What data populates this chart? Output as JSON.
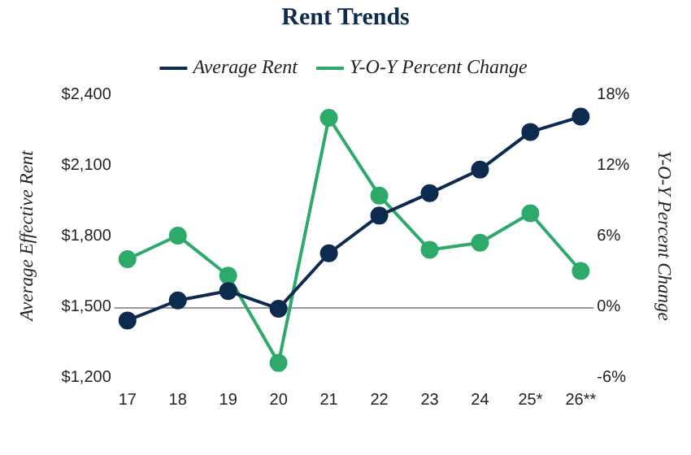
{
  "chart_data": {
    "type": "line",
    "title": "Rent Trends",
    "categories": [
      "17",
      "18",
      "19",
      "20",
      "21",
      "22",
      "23",
      "24",
      "25*",
      "26**"
    ],
    "series": [
      {
        "name": "Average Rent",
        "color": "#0d2a4f",
        "values": [
          1440,
          1525,
          1565,
          1490,
          1725,
          1885,
          1980,
          2080,
          2240,
          2305
        ]
      },
      {
        "name": "Y-O-Y Percent Change",
        "color": "#2daa6a",
        "axis": "y2",
        "values": [
          4.0,
          6.0,
          2.6,
          -4.8,
          16.0,
          9.4,
          4.8,
          5.4,
          7.9,
          3.0
        ]
      }
    ],
    "ylabel": "Average Effective Rent",
    "y2label": "Y-O-Y Percent Change",
    "ylim": [
      1200,
      2400
    ],
    "yticks": [
      {
        "value": 1200,
        "label": "$1,200"
      },
      {
        "value": 1500,
        "label": "$1,500"
      },
      {
        "value": 1800,
        "label": "$1,800"
      },
      {
        "value": 2100,
        "label": "$2,100"
      },
      {
        "value": 2400,
        "label": "$2,400"
      }
    ],
    "y2lim": [
      -6,
      18
    ],
    "y2ticks": [
      {
        "value": -6,
        "label": "-6%"
      },
      {
        "value": 0,
        "label": "0%"
      },
      {
        "value": 6,
        "label": "6%"
      },
      {
        "value": 12,
        "label": "12%"
      },
      {
        "value": 18,
        "label": "18%"
      }
    ],
    "ref_lines": [
      {
        "axis": "y2",
        "value": 0,
        "color": "#999999"
      }
    ],
    "grid": false,
    "legend": "top",
    "marker": "circle",
    "line_style": "solid"
  }
}
